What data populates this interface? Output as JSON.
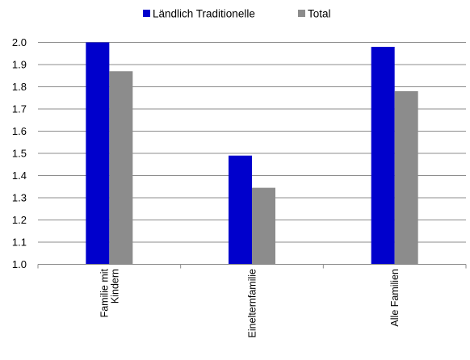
{
  "chart_data": {
    "type": "bar",
    "categories": [
      [
        "Familie mit",
        "Kindern"
      ],
      [
        "Einelternfamilie"
      ],
      [
        "Alle Familien"
      ]
    ],
    "series": [
      {
        "name": "Ländlich Traditionelle",
        "color": "#0000cc",
        "values": [
          2.0,
          1.49,
          1.98
        ]
      },
      {
        "name": "Total",
        "color": "#8c8c8c",
        "values": [
          1.87,
          1.345,
          1.78
        ]
      }
    ],
    "ylim": [
      1.0,
      2.0
    ],
    "yticks": [
      "1.0",
      "1.1",
      "1.2",
      "1.3",
      "1.4",
      "1.5",
      "1.6",
      "1.7",
      "1.8",
      "1.9",
      "2.0"
    ],
    "grid": true,
    "legend": "top-center",
    "gridline_color": "#8c8c8c"
  }
}
